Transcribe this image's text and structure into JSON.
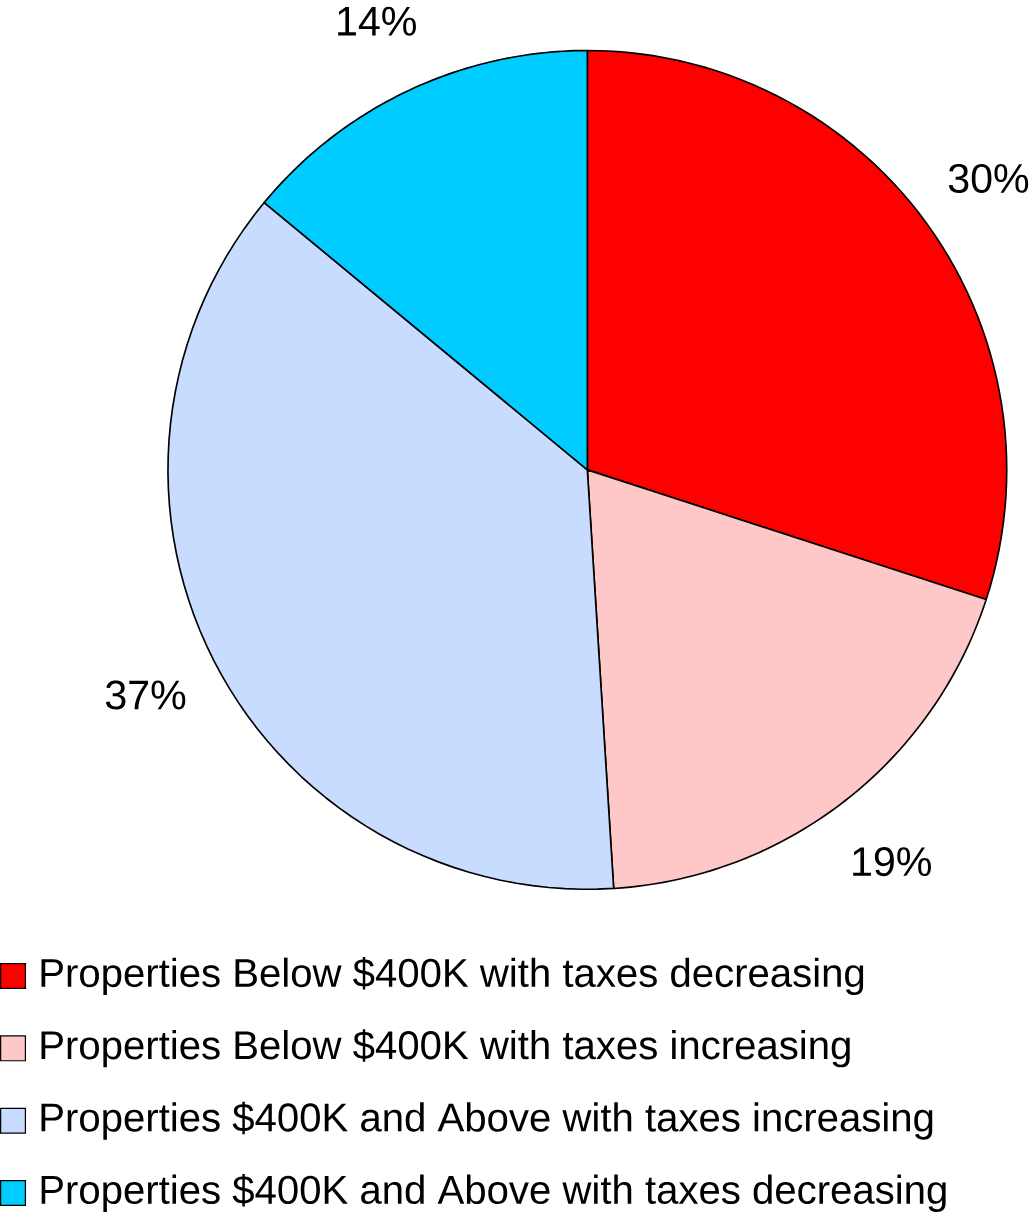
{
  "chart_data": {
    "type": "pie",
    "categories": [
      "Properties Below $400K with taxes decreasing",
      "Properties Below $400K with taxes increasing",
      "Properties $400K and Above with taxes increasing",
      "Properties $400K and Above with taxes decreasing"
    ],
    "values": [
      30,
      19,
      37,
      14
    ],
    "colors": [
      "#ff0000",
      "#ffc8c8",
      "#c8dcff",
      "#00ccff"
    ],
    "value_labels": [
      "30%",
      "19%",
      "37%",
      "14%"
    ],
    "legend": "bottom"
  }
}
